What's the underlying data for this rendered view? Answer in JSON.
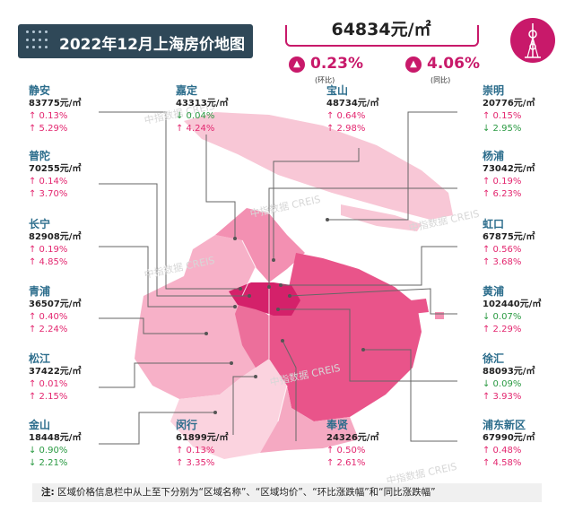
{
  "title": "2022年12月上海房价地图",
  "average": "64834元/㎡",
  "mom": {
    "value": "0.23%",
    "label": "(环比)",
    "arrow": "▲"
  },
  "yoy": {
    "value": "4.06%",
    "label": "(同比)",
    "arrow": "▲"
  },
  "watermark": "中指数据 CREIS",
  "districts": [
    {
      "name": "静安",
      "price": "83775元/㎡",
      "mom": "↑ 0.13%",
      "yoy": "↑ 5.29%",
      "mom_dir": "up",
      "yoy_dir": "up"
    },
    {
      "name": "嘉定",
      "price": "43313元/㎡",
      "mom": "↓ 0.04%",
      "yoy": "↑ 4.24%",
      "mom_dir": "down",
      "yoy_dir": "up"
    },
    {
      "name": "宝山",
      "price": "48734元/㎡",
      "mom": "↑ 0.64%",
      "yoy": "↑ 2.98%",
      "mom_dir": "up",
      "yoy_dir": "up"
    },
    {
      "name": "崇明",
      "price": "20776元/㎡",
      "mom": "↑ 0.15%",
      "yoy": "↓ 2.95%",
      "mom_dir": "up",
      "yoy_dir": "down"
    },
    {
      "name": "普陀",
      "price": "70255元/㎡",
      "mom": "↑ 0.14%",
      "yoy": "↑ 3.70%",
      "mom_dir": "up",
      "yoy_dir": "up"
    },
    {
      "name": "杨浦",
      "price": "73042元/㎡",
      "mom": "↑ 0.19%",
      "yoy": "↑ 6.23%",
      "mom_dir": "up",
      "yoy_dir": "up"
    },
    {
      "name": "长宁",
      "price": "82908元/㎡",
      "mom": "↑ 0.19%",
      "yoy": "↑ 4.85%",
      "mom_dir": "up",
      "yoy_dir": "up"
    },
    {
      "name": "虹口",
      "price": "67875元/㎡",
      "mom": "↑ 0.56%",
      "yoy": "↑ 3.68%",
      "mom_dir": "up",
      "yoy_dir": "up"
    },
    {
      "name": "青浦",
      "price": "36507元/㎡",
      "mom": "↑ 0.40%",
      "yoy": "↑ 2.24%",
      "mom_dir": "up",
      "yoy_dir": "up"
    },
    {
      "name": "黄浦",
      "price": "102440元/㎡",
      "mom": "↓ 0.07%",
      "yoy": "↑ 2.29%",
      "mom_dir": "down",
      "yoy_dir": "up"
    },
    {
      "name": "松江",
      "price": "37422元/㎡",
      "mom": "↑ 0.01%",
      "yoy": "↑ 2.15%",
      "mom_dir": "up",
      "yoy_dir": "up"
    },
    {
      "name": "徐汇",
      "price": "88093元/㎡",
      "mom": "↓ 0.09%",
      "yoy": "↑ 3.93%",
      "mom_dir": "down",
      "yoy_dir": "up"
    },
    {
      "name": "金山",
      "price": "18448元/㎡",
      "mom": "↓ 0.90%",
      "yoy": "↓ 2.21%",
      "mom_dir": "down",
      "yoy_dir": "down"
    },
    {
      "name": "闵行",
      "price": "61899元/㎡",
      "mom": "↑ 0.13%",
      "yoy": "↑ 3.35%",
      "mom_dir": "up",
      "yoy_dir": "up"
    },
    {
      "name": "奉贤",
      "price": "24326元/㎡",
      "mom": "↑ 0.50%",
      "yoy": "↑ 2.61%",
      "mom_dir": "up",
      "yoy_dir": "up"
    },
    {
      "name": "浦东新区",
      "price": "67990元/㎡",
      "mom": "↑ 0.48%",
      "yoy": "↑ 4.58%",
      "mom_dir": "up",
      "yoy_dir": "up"
    }
  ],
  "note": {
    "prefix": "注:",
    "text": "区域价格信息栏中从上至下分别为“区域名称”、“区域均价”、“环比涨跌幅”和“同比涨跌幅”"
  },
  "colors": {
    "accent": "#c8196a",
    "title_bg": "#2f4858",
    "name": "#2c6d8c",
    "up": "#e3266f",
    "down": "#2a9a42"
  }
}
